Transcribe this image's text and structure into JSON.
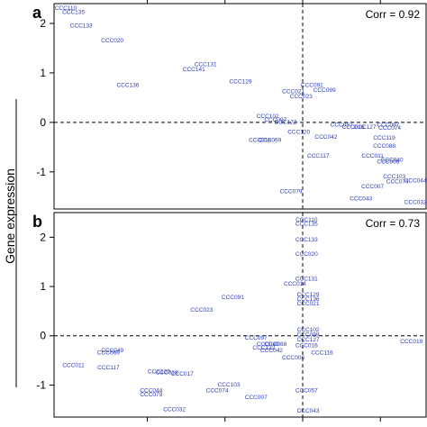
{
  "ylabel": "Gene expression",
  "colors": {
    "label": "#2a3bb8",
    "frame": "#000000",
    "refline": "#000000"
  },
  "chart_data": [
    {
      "type": "scatter",
      "panel": "a",
      "corr_text": "Corr = 0.92",
      "ylim": [
        -1.75,
        2.4
      ],
      "xlim": [
        -3.2,
        1.6
      ],
      "yticks": [
        -1,
        0,
        1,
        2
      ],
      "reference_lines": {
        "x": 0,
        "y": 0,
        "style": "dashed"
      },
      "points": [
        {
          "label": "CCC110",
          "x": -3.05,
          "y": 2.3
        },
        {
          "label": "CCC135",
          "x": -2.95,
          "y": 2.22
        },
        {
          "label": "CCC133",
          "x": -2.85,
          "y": 1.95
        },
        {
          "label": "CCC020",
          "x": -2.45,
          "y": 1.65
        },
        {
          "label": "CCC131",
          "x": -1.25,
          "y": 1.17
        },
        {
          "label": "CCC141",
          "x": -1.4,
          "y": 1.07
        },
        {
          "label": "CCC136",
          "x": -2.25,
          "y": 0.75
        },
        {
          "label": "CCC129",
          "x": -0.8,
          "y": 0.82
        },
        {
          "label": "CCC091",
          "x": 0.12,
          "y": 0.75
        },
        {
          "label": "CCC021",
          "x": -0.12,
          "y": 0.62
        },
        {
          "label": "CCC099",
          "x": 0.28,
          "y": 0.65
        },
        {
          "label": "CCC023",
          "x": -0.02,
          "y": 0.52
        },
        {
          "label": "CCC102",
          "x": -0.45,
          "y": 0.12
        },
        {
          "label": "CCC097",
          "x": -0.35,
          "y": 0.05
        },
        {
          "label": "CCC122",
          "x": -0.22,
          "y": 0.0
        },
        {
          "label": "CCC057",
          "x": 0.5,
          "y": -0.05
        },
        {
          "label": "CCC016",
          "x": 0.65,
          "y": -0.1
        },
        {
          "label": "CCC127",
          "x": 0.8,
          "y": -0.1
        },
        {
          "label": "CCC097",
          "x": 1.1,
          "y": -0.05
        },
        {
          "label": "CCC074",
          "x": 1.12,
          "y": -0.12
        },
        {
          "label": "CCC120",
          "x": -0.05,
          "y": -0.2
        },
        {
          "label": "CCC042",
          "x": 0.3,
          "y": -0.3
        },
        {
          "label": "CCC119",
          "x": 1.05,
          "y": -0.32
        },
        {
          "label": "CCC018",
          "x": -0.55,
          "y": -0.36
        },
        {
          "label": "CCC069",
          "x": -0.42,
          "y": -0.36
        },
        {
          "label": "CCC088",
          "x": 1.05,
          "y": -0.48
        },
        {
          "label": "CCC117",
          "x": 0.2,
          "y": -0.68
        },
        {
          "label": "CCC011",
          "x": 0.9,
          "y": -0.68
        },
        {
          "label": "CCC040",
          "x": 1.15,
          "y": -0.76
        },
        {
          "label": "CCC006",
          "x": 1.1,
          "y": -0.8
        },
        {
          "label": "CCC103",
          "x": 1.18,
          "y": -1.1
        },
        {
          "label": "CCC079",
          "x": -0.15,
          "y": -1.4
        },
        {
          "label": "CCC074",
          "x": 1.22,
          "y": -1.2
        },
        {
          "label": "CCC044",
          "x": 1.45,
          "y": -1.18
        },
        {
          "label": "CCC007",
          "x": 0.9,
          "y": -1.3
        },
        {
          "label": "CCC043",
          "x": 0.75,
          "y": -1.55
        },
        {
          "label": "CCC032",
          "x": 1.45,
          "y": -1.62
        }
      ]
    },
    {
      "type": "scatter",
      "panel": "b",
      "corr_text": "Corr = 0.73",
      "ylim": [
        -1.65,
        2.5
      ],
      "xlim": [
        -3.2,
        1.6
      ],
      "yticks": [
        -1,
        0,
        1,
        2
      ],
      "reference_lines": {
        "x": 0,
        "y": 0,
        "style": "dashed"
      },
      "points": [
        {
          "label": "CCC110",
          "x": 0.05,
          "y": 2.35
        },
        {
          "label": "CCC135",
          "x": 0.05,
          "y": 2.27
        },
        {
          "label": "CCC133",
          "x": 0.05,
          "y": 1.95
        },
        {
          "label": "CCC020",
          "x": 0.05,
          "y": 1.65
        },
        {
          "label": "CCC131",
          "x": 0.05,
          "y": 1.15
        },
        {
          "label": "CCC014",
          "x": -0.1,
          "y": 1.05
        },
        {
          "label": "CCC129",
          "x": 0.07,
          "y": 0.83
        },
        {
          "label": "CCC136",
          "x": 0.07,
          "y": 0.74
        },
        {
          "label": "CCC021",
          "x": 0.07,
          "y": 0.65
        },
        {
          "label": "CCC091",
          "x": -0.9,
          "y": 0.78
        },
        {
          "label": "CCC023",
          "x": -1.3,
          "y": 0.52
        },
        {
          "label": "CCC102",
          "x": 0.07,
          "y": 0.12
        },
        {
          "label": "CCC099",
          "x": 0.07,
          "y": 0.02
        },
        {
          "label": "CCC097",
          "x": -0.6,
          "y": -0.05
        },
        {
          "label": "CCC127",
          "x": 0.07,
          "y": -0.08
        },
        {
          "label": "CCC019",
          "x": 1.4,
          "y": -0.12
        },
        {
          "label": "CCC049",
          "x": -2.45,
          "y": -0.3
        },
        {
          "label": "CCC069",
          "x": -2.5,
          "y": -0.35
        },
        {
          "label": "CCC040",
          "x": -0.45,
          "y": -0.17
        },
        {
          "label": "CCC088",
          "x": -0.35,
          "y": -0.17
        },
        {
          "label": "CCC122",
          "x": -0.5,
          "y": -0.25
        },
        {
          "label": "CCC042",
          "x": -0.4,
          "y": -0.3
        },
        {
          "label": "CCC016",
          "x": 0.05,
          "y": -0.2
        },
        {
          "label": "CCC006",
          "x": -0.12,
          "y": -0.45
        },
        {
          "label": "CCC116",
          "x": 0.25,
          "y": -0.35
        },
        {
          "label": "CCC011",
          "x": -2.95,
          "y": -0.6
        },
        {
          "label": "CCC117",
          "x": -2.5,
          "y": -0.65
        },
        {
          "label": "CCC120",
          "x": -1.85,
          "y": -0.73
        },
        {
          "label": "CCC018",
          "x": -1.75,
          "y": -0.75
        },
        {
          "label": "CCC017",
          "x": -1.55,
          "y": -0.78
        },
        {
          "label": "CCC103",
          "x": -0.95,
          "y": -1.0
        },
        {
          "label": "CCC044",
          "x": -1.95,
          "y": -1.12
        },
        {
          "label": "CCC074",
          "x": -1.1,
          "y": -1.12
        },
        {
          "label": "CCC079",
          "x": -1.95,
          "y": -1.2
        },
        {
          "label": "CCC057",
          "x": 0.05,
          "y": -1.12
        },
        {
          "label": "CCC007",
          "x": -0.6,
          "y": -1.25
        },
        {
          "label": "CCC032",
          "x": -1.65,
          "y": -1.5
        },
        {
          "label": "CCC043",
          "x": 0.07,
          "y": -1.53
        }
      ]
    }
  ]
}
